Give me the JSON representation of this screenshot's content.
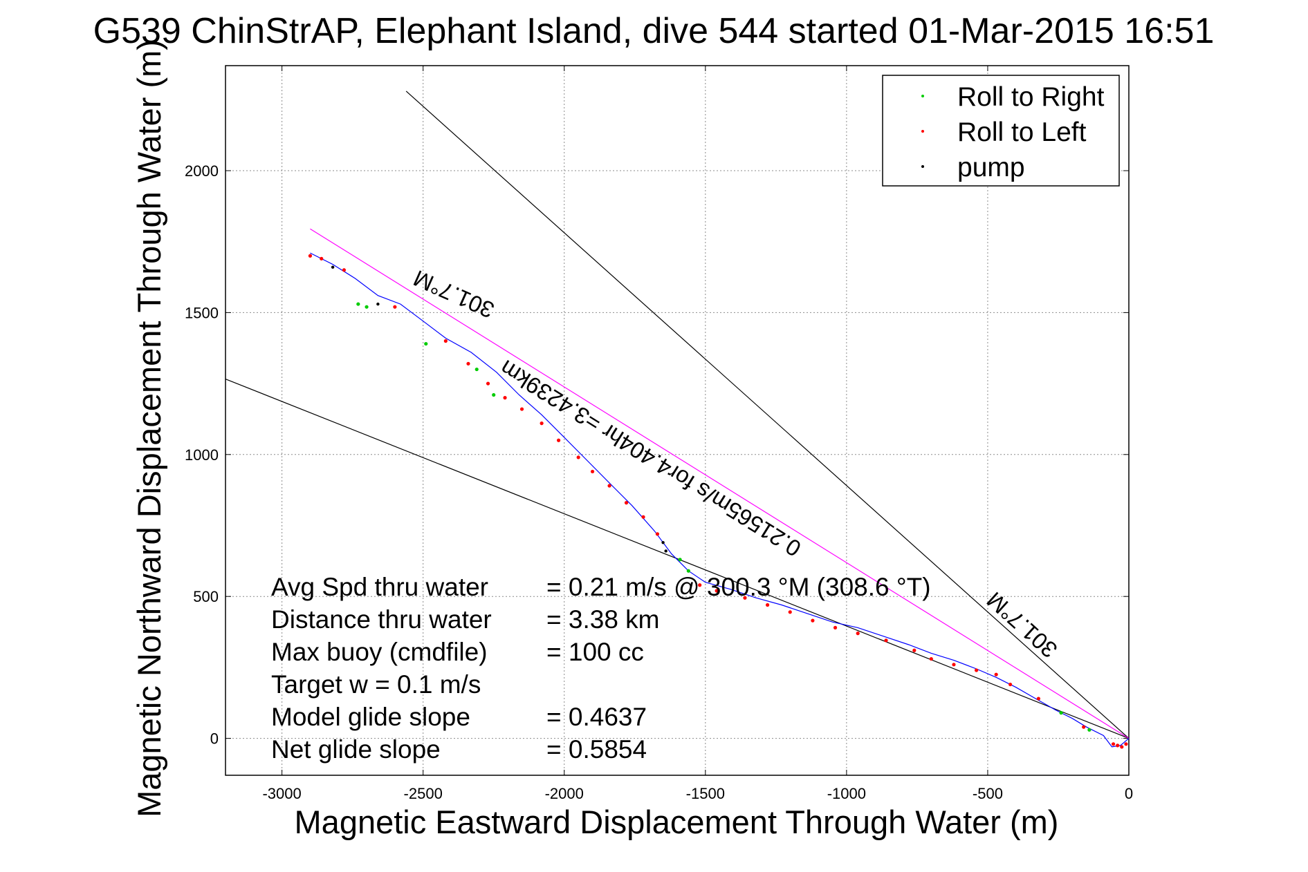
{
  "chart_data": {
    "type": "line",
    "title": "G539 ChinStrAP, Elephant Island, dive 544 started 01-Mar-2015 16:51",
    "xlabel": "Magnetic Eastward Displacement Through Water (m)",
    "ylabel": "Magnetic Northward Displacement Through Water (m)",
    "xlim": [
      -3200,
      0
    ],
    "ylim": [
      -130,
      2370
    ],
    "xticks": [
      -3000,
      -2500,
      -2000,
      -1500,
      -1000,
      -500,
      0
    ],
    "yticks": [
      0,
      500,
      1000,
      1500,
      2000
    ],
    "grid": true,
    "legend_position": "top-right",
    "legend": [
      {
        "label": "Roll to Right",
        "color": "#00cc00"
      },
      {
        "label": "Roll to Left",
        "color": "#ff0000"
      },
      {
        "label": "pump",
        "color": "#000000"
      }
    ],
    "track": {
      "color": "#0000ff",
      "x": [
        0,
        -30,
        -60,
        -90,
        -150,
        -200,
        -260,
        -330,
        -400,
        -470,
        -540,
        -620,
        -700,
        -780,
        -870,
        -960,
        -1050,
        -1140,
        -1230,
        -1320,
        -1410,
        -1500,
        -1560,
        -1620,
        -1680,
        -1760,
        -1840,
        -1920,
        -2000,
        -2080,
        -2160,
        -2240,
        -2330,
        -2420,
        -2500,
        -2580,
        -2660,
        -2740,
        -2820,
        -2900
      ],
      "y": [
        0,
        -25,
        -30,
        10,
        40,
        70,
        100,
        140,
        180,
        215,
        245,
        275,
        300,
        330,
        360,
        390,
        410,
        440,
        470,
        495,
        525,
        550,
        590,
        650,
        730,
        820,
        900,
        980,
        1060,
        1140,
        1210,
        1290,
        1360,
        1410,
        1470,
        1530,
        1560,
        1620,
        1670,
        1710
      ]
    },
    "roll_right": {
      "x": [
        -140,
        -240,
        -1560,
        -1590,
        -2250,
        -2310,
        -2490,
        -2700,
        -2730
      ],
      "y": [
        30,
        90,
        590,
        630,
        1210,
        1300,
        1390,
        1520,
        1530
      ]
    },
    "roll_left": {
      "x": [
        -10,
        -25,
        -40,
        -55,
        -160,
        -320,
        -420,
        -470,
        -540,
        -620,
        -700,
        -760,
        -860,
        -960,
        -1040,
        -1120,
        -1200,
        -1280,
        -1360,
        -1460,
        -1520,
        -1670,
        -1720,
        -1780,
        -1840,
        -1900,
        -1950,
        -2020,
        -2080,
        -2150,
        -2210,
        -2270,
        -2340,
        -2420,
        -2600,
        -2780,
        -2860,
        -2900
      ],
      "y": [
        -20,
        -30,
        -25,
        -20,
        40,
        140,
        190,
        225,
        240,
        260,
        280,
        310,
        345,
        370,
        390,
        415,
        445,
        470,
        495,
        520,
        540,
        720,
        780,
        830,
        890,
        940,
        990,
        1050,
        1110,
        1160,
        1200,
        1250,
        1320,
        1400,
        1520,
        1650,
        1690,
        1700
      ]
    },
    "pump": {
      "x": [
        -1640,
        -1650,
        -2660,
        -2820
      ],
      "y": [
        660,
        690,
        1530,
        1660
      ]
    },
    "reference_lines": [
      {
        "name": "",
        "color": "#000000",
        "x": [
          0,
          -3200
        ],
        "y": [
          0,
          1266
        ]
      },
      {
        "name": "",
        "color": "#000000",
        "x": [
          0,
          -2560
        ],
        "y": [
          0,
          2280
        ]
      },
      {
        "name": "",
        "color": "#ff00ff",
        "x": [
          0,
          -2900
        ],
        "y": [
          0,
          1795
        ]
      }
    ],
    "annotations": [
      {
        "text": "301.7°M",
        "x": -2380,
        "y": 1590,
        "angle": 24
      },
      {
        "text": "0.21565m/s for4.404hr =3.4239km",
        "x": -1680,
        "y": 1010,
        "angle": 32
      },
      {
        "text": "301.7°M",
        "x": -360,
        "y": 420,
        "angle": 42
      }
    ],
    "stats": [
      {
        "label": "Avg Spd thru water",
        "value": "=  0.21 m/s @ 300.3  °M (308.6  °T)"
      },
      {
        "label": "Distance thru water",
        "value": "=  3.38 km"
      },
      {
        "label": "Max buoy (cmdfile)",
        "value": "= 100 cc"
      },
      {
        "label": "Target w    = 0.1 m/s",
        "value": ""
      },
      {
        "label": "Model glide slope",
        "value": "= 0.4637"
      },
      {
        "label": "Net glide slope",
        "value": "= 0.5854"
      }
    ]
  }
}
